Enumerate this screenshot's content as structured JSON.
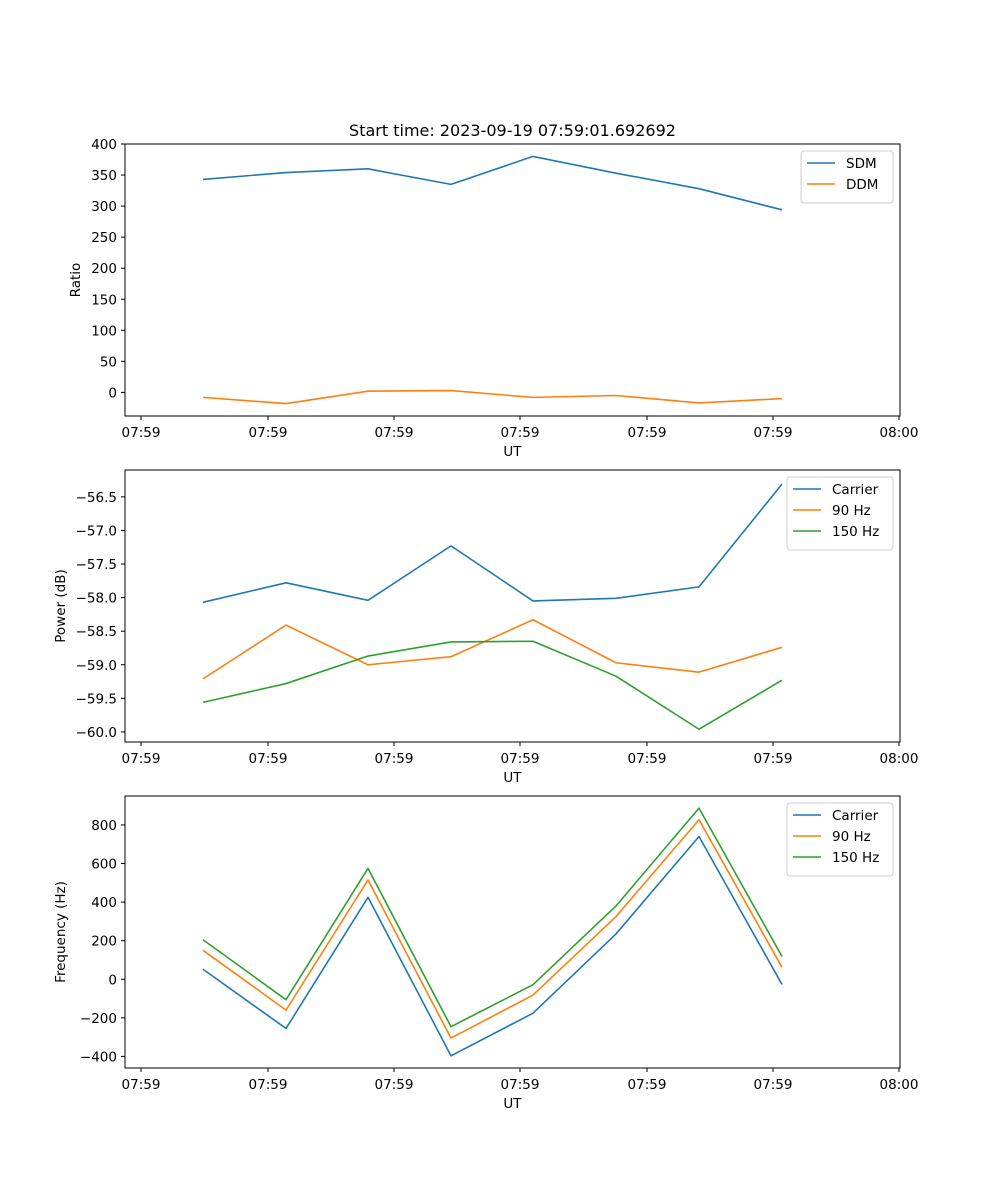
{
  "chart_data": [
    {
      "type": "line",
      "title": "Start time: 2023-09-19 07:59:01.692692",
      "xlabel": "UT",
      "ylabel": "Ratio",
      "xticks": [
        "07:59",
        "07:59",
        "07:59",
        "07:59",
        "07:59",
        "07:59",
        "08:00"
      ],
      "ylim": [
        -38,
        400
      ],
      "yticks": [
        0,
        50,
        100,
        150,
        200,
        250,
        300,
        350,
        400
      ],
      "ytick_labels": [
        "0",
        "50",
        "100",
        "150",
        "200",
        "250",
        "300",
        "350",
        "400"
      ],
      "legend_position": "top-right",
      "series": [
        {
          "name": "SDM",
          "color": "#1f77b4",
          "values": [
            343,
            354,
            360,
            335,
            380,
            353,
            328,
            294
          ]
        },
        {
          "name": "DDM",
          "color": "#ff7f0e",
          "values": [
            -8,
            -18,
            2,
            3,
            -8,
            -5,
            -17,
            -10
          ]
        }
      ]
    },
    {
      "type": "line",
      "title": "",
      "xlabel": "UT",
      "ylabel": "Power (dB)",
      "xticks": [
        "07:59",
        "07:59",
        "07:59",
        "07:59",
        "07:59",
        "07:59",
        "08:00"
      ],
      "ylim": [
        -60.15,
        -56.1
      ],
      "yticks": [
        -60.0,
        -59.5,
        -59.0,
        -58.5,
        -58.0,
        -57.5,
        -57.0,
        -56.5
      ],
      "ytick_labels": [
        "−60.0",
        "−59.5",
        "−59.0",
        "−58.5",
        "−58.0",
        "−57.5",
        "−57.0",
        "−56.5"
      ],
      "legend_position": "top-right",
      "series": [
        {
          "name": "Carrier",
          "color": "#1f77b4",
          "values": [
            -58.07,
            -57.78,
            -58.04,
            -57.23,
            -58.05,
            -58.01,
            -57.84,
            -56.31
          ]
        },
        {
          "name": "90 Hz",
          "color": "#ff7f0e",
          "values": [
            -59.21,
            -58.41,
            -59.0,
            -58.88,
            -58.33,
            -58.97,
            -59.11,
            -58.74
          ]
        },
        {
          "name": "150 Hz",
          "color": "#2ca02c",
          "values": [
            -59.56,
            -59.28,
            -58.87,
            -58.66,
            -58.65,
            -59.17,
            -59.96,
            -59.23
          ]
        }
      ]
    },
    {
      "type": "line",
      "title": "",
      "xlabel": "UT",
      "ylabel": "Frequency (Hz)",
      "xticks": [
        "07:59",
        "07:59",
        "07:59",
        "07:59",
        "07:59",
        "07:59",
        "08:00"
      ],
      "ylim": [
        -460,
        950
      ],
      "yticks": [
        -400,
        -200,
        0,
        200,
        400,
        600,
        800
      ],
      "ytick_labels": [
        "−400",
        "−200",
        "0",
        "200",
        "400",
        "600",
        "800"
      ],
      "legend_position": "top-right",
      "series": [
        {
          "name": "Carrier",
          "color": "#1f77b4",
          "values": [
            52,
            -255,
            425,
            -397,
            -176,
            235,
            740,
            -27
          ]
        },
        {
          "name": "90 Hz",
          "color": "#ff7f0e",
          "values": [
            150,
            -160,
            515,
            -305,
            -82,
            325,
            827,
            62
          ]
        },
        {
          "name": "150 Hz",
          "color": "#2ca02c",
          "values": [
            205,
            -106,
            575,
            -246,
            -28,
            380,
            887,
            118
          ]
        }
      ]
    }
  ]
}
